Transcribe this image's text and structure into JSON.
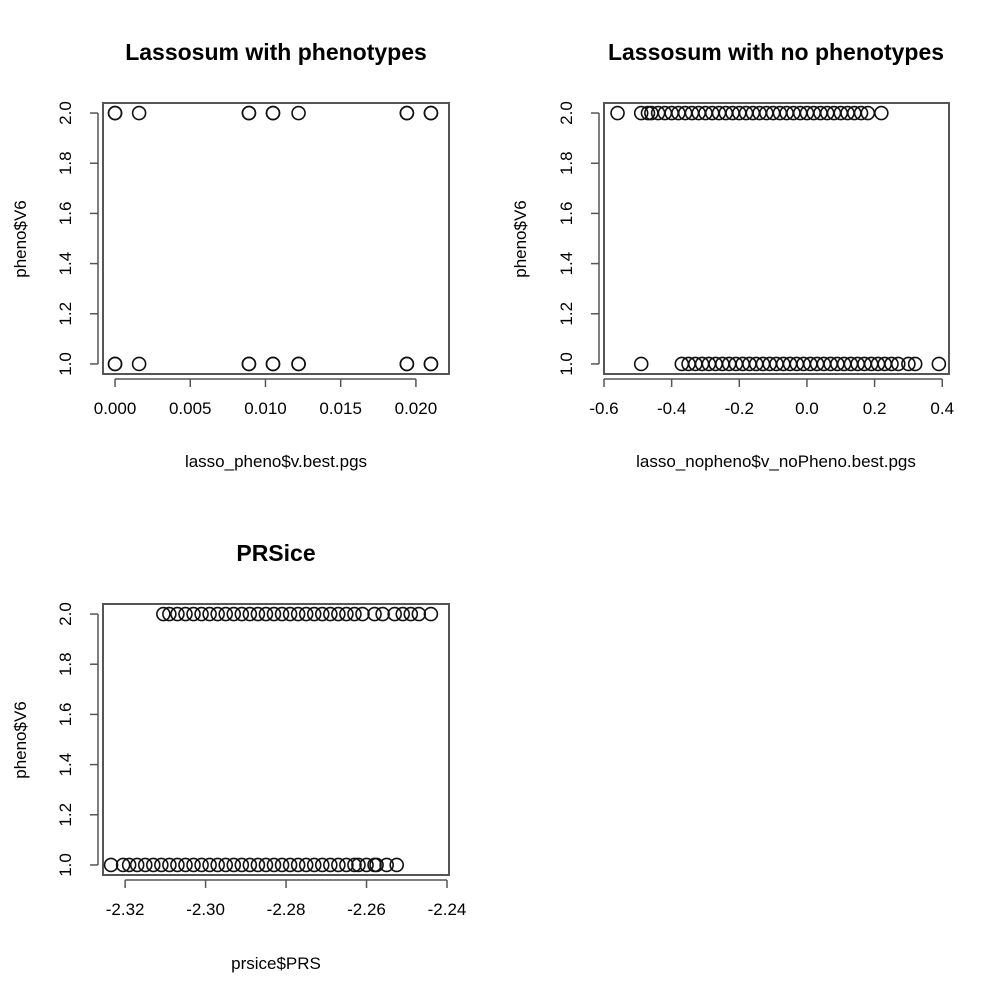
{
  "chart_data": [
    {
      "type": "scatter",
      "title": "Lassosum with phenotypes",
      "xlabel": "lasso_pheno$v.best.pgs",
      "ylabel": "pheno$V6",
      "xlim": [
        -0.0008,
        0.0222
      ],
      "ylim": [
        0.96,
        2.04
      ],
      "xticks": [
        0.0,
        0.005,
        0.01,
        0.015,
        0.02
      ],
      "xtick_labels": [
        "0.000",
        "0.005",
        "0.010",
        "0.015",
        "0.020"
      ],
      "yticks": [
        1.0,
        1.2,
        1.4,
        1.6,
        1.8,
        2.0
      ],
      "ytick_labels": [
        "1.0",
        "1.2",
        "1.4",
        "1.6",
        "1.8",
        "2.0"
      ],
      "marker": "open-circle",
      "series": [
        {
          "x": [
            0.0,
            0.0,
            0.0016,
            0.0089,
            0.0089,
            0.0105,
            0.0105,
            0.0122,
            0.0194,
            0.0194,
            0.021,
            0.021
          ],
          "y": [
            2,
            2,
            2,
            2,
            2,
            2,
            2,
            2,
            2,
            2,
            2,
            2
          ]
        },
        {
          "x": [
            0.0,
            0.0,
            0.0016,
            0.0089,
            0.0089,
            0.0105,
            0.0105,
            0.0122,
            0.0122,
            0.0194,
            0.0194,
            0.021,
            0.021
          ],
          "y": [
            1,
            1,
            1,
            1,
            1,
            1,
            1,
            1,
            1,
            1,
            1,
            1,
            1
          ]
        }
      ]
    },
    {
      "type": "scatter",
      "title": "Lassosum with no phenotypes",
      "xlabel": "lasso_nopheno$v_noPheno.best.pgs",
      "ylabel": "pheno$V6",
      "xlim": [
        -0.6,
        0.42
      ],
      "ylim": [
        0.96,
        2.04
      ],
      "xticks": [
        -0.6,
        -0.4,
        -0.2,
        0.0,
        0.2,
        0.4
      ],
      "xtick_labels": [
        "-0.6",
        "-0.4",
        "-0.2",
        "0.0",
        "0.2",
        "0.4"
      ],
      "yticks": [
        1.0,
        1.2,
        1.4,
        1.6,
        1.8,
        2.0
      ],
      "ytick_labels": [
        "1.0",
        "1.2",
        "1.4",
        "1.6",
        "1.8",
        "2.0"
      ],
      "marker": "open-circle",
      "series": [
        {
          "x": [
            -0.56,
            -0.49,
            -0.47,
            -0.46,
            -0.44,
            -0.42,
            -0.4,
            -0.38,
            -0.36,
            -0.34,
            -0.32,
            -0.3,
            -0.28,
            -0.26,
            -0.24,
            -0.22,
            -0.2,
            -0.18,
            -0.16,
            -0.14,
            -0.12,
            -0.1,
            -0.08,
            -0.06,
            -0.04,
            -0.02,
            0.0,
            0.02,
            0.04,
            0.06,
            0.08,
            0.1,
            0.12,
            0.14,
            0.16,
            0.18,
            0.22
          ],
          "y": [
            2,
            2,
            2,
            2,
            2,
            2,
            2,
            2,
            2,
            2,
            2,
            2,
            2,
            2,
            2,
            2,
            2,
            2,
            2,
            2,
            2,
            2,
            2,
            2,
            2,
            2,
            2,
            2,
            2,
            2,
            2,
            2,
            2,
            2,
            2,
            2,
            2
          ]
        },
        {
          "x": [
            -0.49,
            -0.37,
            -0.35,
            -0.33,
            -0.31,
            -0.29,
            -0.27,
            -0.25,
            -0.23,
            -0.21,
            -0.19,
            -0.17,
            -0.15,
            -0.13,
            -0.11,
            -0.09,
            -0.07,
            -0.05,
            -0.03,
            -0.01,
            0.01,
            0.03,
            0.05,
            0.07,
            0.09,
            0.11,
            0.13,
            0.15,
            0.17,
            0.19,
            0.21,
            0.23,
            0.25,
            0.27,
            0.3,
            0.32,
            0.39
          ],
          "y": [
            1,
            1,
            1,
            1,
            1,
            1,
            1,
            1,
            1,
            1,
            1,
            1,
            1,
            1,
            1,
            1,
            1,
            1,
            1,
            1,
            1,
            1,
            1,
            1,
            1,
            1,
            1,
            1,
            1,
            1,
            1,
            1,
            1,
            1,
            1,
            1,
            1
          ]
        }
      ]
    },
    {
      "type": "scatter",
      "title": "PRSice",
      "xlabel": "prsice$PRS",
      "ylabel": "pheno$V6",
      "xlim": [
        -2.3255,
        -2.2395
      ],
      "ylim": [
        0.96,
        2.04
      ],
      "xticks": [
        -2.32,
        -2.3,
        -2.28,
        -2.26,
        -2.24
      ],
      "xtick_labels": [
        "-2.32",
        "-2.30",
        "-2.28",
        "-2.26",
        "-2.24"
      ],
      "yticks": [
        1.0,
        1.2,
        1.4,
        1.6,
        1.8,
        2.0
      ],
      "ytick_labels": [
        "1.0",
        "1.2",
        "1.4",
        "1.6",
        "1.8",
        "2.0"
      ],
      "marker": "open-circle",
      "series": [
        {
          "x": [
            -2.3105,
            -2.309,
            -2.307,
            -2.305,
            -2.303,
            -2.301,
            -2.299,
            -2.297,
            -2.295,
            -2.293,
            -2.291,
            -2.289,
            -2.287,
            -2.285,
            -2.283,
            -2.281,
            -2.279,
            -2.277,
            -2.275,
            -2.273,
            -2.271,
            -2.269,
            -2.267,
            -2.265,
            -2.263,
            -2.261,
            -2.258,
            -2.256,
            -2.253,
            -2.251,
            -2.249,
            -2.247,
            -2.244
          ],
          "y": [
            2,
            2,
            2,
            2,
            2,
            2,
            2,
            2,
            2,
            2,
            2,
            2,
            2,
            2,
            2,
            2,
            2,
            2,
            2,
            2,
            2,
            2,
            2,
            2,
            2,
            2,
            2,
            2,
            2,
            2,
            2,
            2,
            2
          ]
        },
        {
          "x": [
            -2.3235,
            -2.3205,
            -2.319,
            -2.317,
            -2.315,
            -2.313,
            -2.311,
            -2.309,
            -2.307,
            -2.305,
            -2.303,
            -2.301,
            -2.299,
            -2.297,
            -2.295,
            -2.293,
            -2.291,
            -2.289,
            -2.287,
            -2.285,
            -2.283,
            -2.281,
            -2.279,
            -2.277,
            -2.275,
            -2.273,
            -2.271,
            -2.269,
            -2.267,
            -2.265,
            -2.263,
            -2.262,
            -2.26,
            -2.258,
            -2.2575,
            -2.255,
            -2.2525
          ],
          "y": [
            1,
            1,
            1,
            1,
            1,
            1,
            1,
            1,
            1,
            1,
            1,
            1,
            1,
            1,
            1,
            1,
            1,
            1,
            1,
            1,
            1,
            1,
            1,
            1,
            1,
            1,
            1,
            1,
            1,
            1,
            1,
            1,
            1,
            1,
            1,
            1,
            1
          ]
        }
      ]
    }
  ]
}
